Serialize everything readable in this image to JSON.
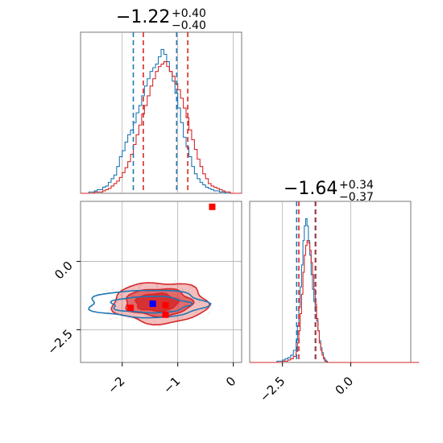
{
  "chart_data": {
    "type": "corner",
    "colors": {
      "series_a": "#1f77b4",
      "series_b": "#d62728",
      "marker_blue": "#0000ff",
      "marker_red": "#ff0000",
      "frame": "#777777",
      "grid": "#b0b0b0"
    },
    "panels": [
      {
        "id": "hist_param1",
        "type": "histogram",
        "title": {
          "value": "−1.22",
          "plus": "+0.40",
          "minus": "−0.40"
        },
        "xlim": [
          -2.75,
          0.15
        ],
        "grid": true,
        "series": [
          {
            "color": "#1f77b4",
            "x": [
              -2.75,
              -2.7,
              -2.65,
              -2.6,
              -2.55,
              -2.5,
              -2.45,
              -2.4,
              -2.35,
              -2.3,
              -2.25,
              -2.2,
              -2.15,
              -2.1,
              -2.05,
              -2.0,
              -1.95,
              -1.9,
              -1.85,
              -1.8,
              -1.75,
              -1.7,
              -1.65,
              -1.6,
              -1.55,
              -1.5,
              -1.45,
              -1.4,
              -1.35,
              -1.3,
              -1.25,
              -1.2,
              -1.15,
              -1.1,
              -1.05,
              -1.0,
              -0.95,
              -0.9,
              -0.85,
              -0.8,
              -0.75,
              -0.7,
              -0.65,
              -0.6,
              -0.55,
              -0.5,
              -0.45,
              -0.4,
              -0.35,
              -0.3,
              -0.25,
              -0.2,
              -0.15,
              -0.1,
              -0.05,
              0.0,
              0.05,
              0.1
            ],
            "y": [
              0,
              0,
              0,
              1,
              1,
              2,
              3,
              3,
              5,
              6,
              9,
              12,
              15,
              22,
              30,
              35,
              42,
              48,
              52,
              58,
              66,
              72,
              80,
              88,
              94,
              100,
              103,
              106,
              112,
              118,
              114,
              108,
              100,
              92,
              82,
              70,
              58,
              46,
              38,
              30,
              22,
              16,
              12,
              9,
              7,
              5,
              4,
              3,
              2,
              2,
              1,
              1,
              0,
              0,
              0,
              0,
              0,
              0
            ]
          },
          {
            "color": "#d62728",
            "x": [
              -2.75,
              -2.7,
              -2.65,
              -2.6,
              -2.55,
              -2.5,
              -2.45,
              -2.4,
              -2.35,
              -2.3,
              -2.25,
              -2.2,
              -2.15,
              -2.1,
              -2.05,
              -2.0,
              -1.95,
              -1.9,
              -1.85,
              -1.8,
              -1.75,
              -1.7,
              -1.65,
              -1.6,
              -1.55,
              -1.5,
              -1.45,
              -1.4,
              -1.35,
              -1.3,
              -1.25,
              -1.2,
              -1.15,
              -1.1,
              -1.05,
              -1.0,
              -0.95,
              -0.9,
              -0.85,
              -0.8,
              -0.75,
              -0.7,
              -0.65,
              -0.6,
              -0.55,
              -0.5,
              -0.45,
              -0.4,
              -0.35,
              -0.3,
              -0.25,
              -0.2,
              -0.15,
              -0.1,
              -0.05,
              0.0,
              0.05,
              0.1
            ],
            "y": [
              0,
              0,
              0,
              0,
              0,
              1,
              1,
              1,
              2,
              3,
              4,
              6,
              8,
              10,
              13,
              17,
              21,
              26,
              32,
              40,
              48,
              56,
              65,
              72,
              80,
              88,
              94,
              100,
              104,
              106,
              108,
              104,
              100,
              96,
              90,
              85,
              78,
              70,
              62,
              52,
              44,
              36,
              28,
              22,
              16,
              12,
              8,
              6,
              5,
              4,
              3,
              2,
              1,
              1,
              0,
              0,
              0,
              0
            ]
          }
        ],
        "quantile_lines": {
          "series_a": [
            -1.8,
            -1.02
          ],
          "series_b": [
            -1.62,
            -0.82
          ]
        }
      },
      {
        "id": "scatter_2d",
        "type": "contour",
        "xlim": [
          -2.75,
          0.15
        ],
        "ylim": [
          -3.7,
          2.2
        ],
        "xticks": [
          -2,
          -1,
          0
        ],
        "yticks": [
          0.0,
          -2.5
        ],
        "yticklabels": [
          "0.0",
          "−2.5"
        ],
        "xticklabels": [
          "−2",
          "−1",
          "0"
        ],
        "grid": true,
        "contours": [
          {
            "color": "#d62728",
            "fill": true,
            "levels": [
              {
                "cx": -1.32,
                "cy": -1.52,
                "rx": 0.85,
                "ry": 0.75,
                "opacity": 0.3
              },
              {
                "cx": -1.35,
                "cy": -1.5,
                "rx": 0.6,
                "ry": 0.5,
                "opacity": 0.55
              },
              {
                "cx": -1.38,
                "cy": -1.5,
                "rx": 0.38,
                "ry": 0.32,
                "opacity": 0.85
              }
            ]
          },
          {
            "color": "#1f77b4",
            "fill": false,
            "levels": [
              {
                "cx": -1.55,
                "cy": -1.55,
                "rx": 1.05,
                "ry": 0.5
              },
              {
                "cx": -1.5,
                "cy": -1.58,
                "rx": 0.7,
                "ry": 0.3
              }
            ]
          }
        ],
        "markers": [
          {
            "x": -0.38,
            "y": 2.0,
            "color": "#ff0000"
          },
          {
            "x": -1.45,
            "y": -1.55,
            "color": "#0000ff"
          },
          {
            "x": -1.85,
            "y": -1.7,
            "color": "#ff0000"
          },
          {
            "x": -1.22,
            "y": -1.6,
            "color": "#ff0000"
          },
          {
            "x": -1.22,
            "y": -1.95,
            "color": "#ff0000"
          }
        ]
      },
      {
        "id": "hist_param2",
        "type": "histogram",
        "title": {
          "value": "−1.64",
          "plus": "+0.34",
          "minus": "−0.37"
        },
        "xlim": [
          -3.7,
          2.2
        ],
        "xticks": [
          -2.5,
          0.0
        ],
        "xticklabels": [
          "−2.5",
          "0.0"
        ],
        "grid": true,
        "series": [
          {
            "color": "#1f77b4",
            "x": [
              -3.7,
              -3.5,
              -3.3,
              -3.1,
              -2.9,
              -2.7,
              -2.5,
              -2.4,
              -2.3,
              -2.2,
              -2.1,
              -2.0,
              -1.95,
              -1.9,
              -1.85,
              -1.8,
              -1.75,
              -1.7,
              -1.65,
              -1.6,
              -1.55,
              -1.5,
              -1.45,
              -1.4,
              -1.35,
              -1.3,
              -1.25,
              -1.2,
              -1.15,
              -1.1,
              -1.05,
              -1.0,
              -0.95,
              -0.9,
              -0.85,
              -0.8,
              -0.7,
              -0.6,
              -0.4,
              -0.2,
              0.0,
              0.5,
              1.0,
              1.5,
              2.0
            ],
            "y": [
              0,
              0,
              0,
              0,
              0,
              1,
              2,
              3,
              4,
              6,
              10,
              18,
              30,
              45,
              62,
              80,
              100,
              112,
              118,
              112,
              100,
              88,
              72,
              60,
              50,
              42,
              34,
              26,
              18,
              12,
              8,
              4,
              2,
              1,
              0,
              0,
              0,
              0,
              0,
              0,
              0,
              0,
              0,
              0,
              0
            ]
          },
          {
            "color": "#d62728",
            "x": [
              -3.7,
              -3.5,
              -3.3,
              -3.1,
              -2.9,
              -2.7,
              -2.5,
              -2.4,
              -2.3,
              -2.2,
              -2.1,
              -2.0,
              -1.95,
              -1.9,
              -1.85,
              -1.8,
              -1.75,
              -1.7,
              -1.65,
              -1.6,
              -1.55,
              -1.5,
              -1.45,
              -1.4,
              -1.35,
              -1.3,
              -1.25,
              -1.2,
              -1.15,
              -1.1,
              -1.05,
              -1.0,
              -0.95,
              -0.9,
              -0.85,
              -0.8,
              -0.7,
              -0.6,
              -0.4,
              -0.2,
              0.0,
              0.5,
              1.0,
              1.5,
              2.0
            ],
            "y": [
              0,
              0,
              0,
              0,
              0,
              0,
              1,
              1,
              2,
              3,
              5,
              9,
              16,
              26,
              40,
              56,
              74,
              88,
              96,
              100,
              98,
              92,
              82,
              72,
              60,
              48,
              36,
              26,
              16,
              10,
              6,
              3,
              1,
              0,
              0,
              0,
              0,
              0,
              0,
              0,
              0,
              0,
              0,
              0,
              0
            ]
          }
        ],
        "quantile_lines": {
          "series_a": [
            -1.98,
            -1.3
          ],
          "series_b": [
            -1.9,
            -1.28
          ]
        }
      }
    ]
  }
}
